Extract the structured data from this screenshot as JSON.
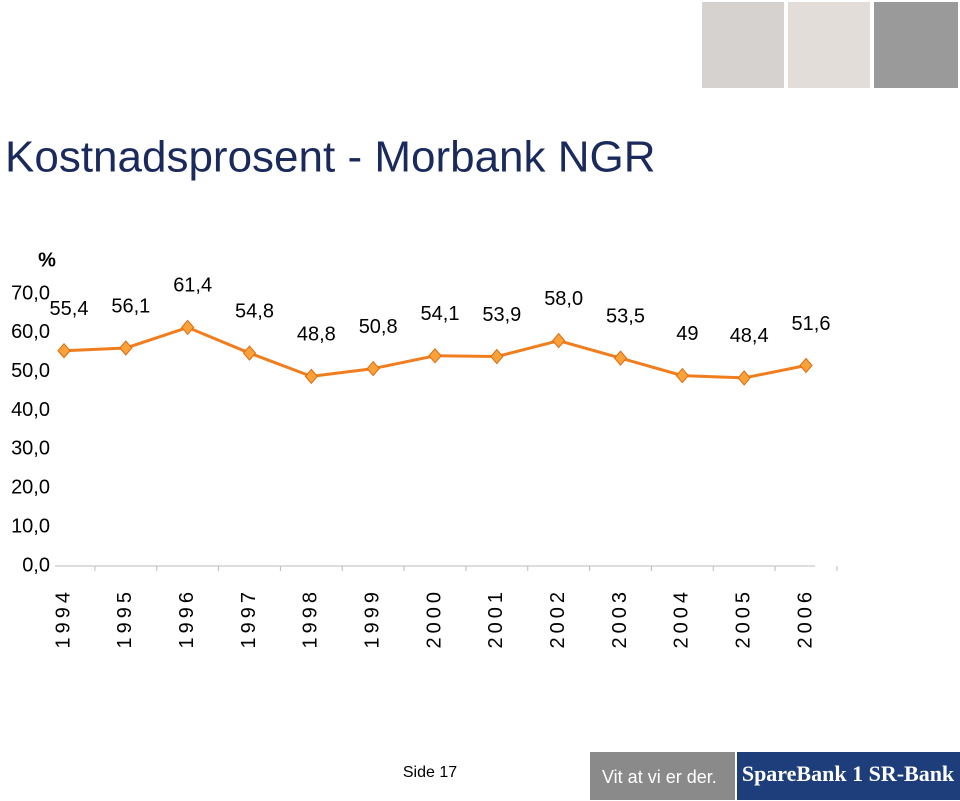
{
  "chart_data": {
    "type": "line",
    "title": "Kostnadsprosent - Morbank NGR",
    "y_label": "%",
    "categories": [
      "1994",
      "1995",
      "1996",
      "1997",
      "1998",
      "1999",
      "2000",
      "2001",
      "2002",
      "2003",
      "2004",
      "2005",
      "2006"
    ],
    "series": [
      {
        "name": "Kostnadsprosent",
        "color": "#f07d1e",
        "values": [
          55.4,
          56.1,
          61.4,
          54.8,
          48.8,
          50.8,
          54.1,
          53.9,
          58.0,
          53.5,
          49,
          48.4,
          51.6
        ],
        "value_labels": [
          "55,4",
          "56,1",
          "61,4",
          "54,8",
          "48,8",
          "50,8",
          "54,1",
          "53,9",
          "58,0",
          "53,5",
          "49",
          "48,4",
          "51,6"
        ]
      }
    ],
    "ylim": [
      0,
      70
    ],
    "yticks": [
      {
        "value": 0,
        "label": "0,0"
      },
      {
        "value": 10,
        "label": "10,0"
      },
      {
        "value": 20,
        "label": "20,0"
      },
      {
        "value": 30,
        "label": "30,0"
      },
      {
        "value": 40,
        "label": "40,0"
      },
      {
        "value": 50,
        "label": "50,0"
      },
      {
        "value": 60,
        "label": "60,0"
      },
      {
        "value": 70,
        "label": "70,0"
      }
    ],
    "grid": false
  },
  "footer": {
    "page": "Side 17",
    "slogan": "Vit at vi er der.",
    "logo": "SpareBank 1 SR-Bank"
  }
}
